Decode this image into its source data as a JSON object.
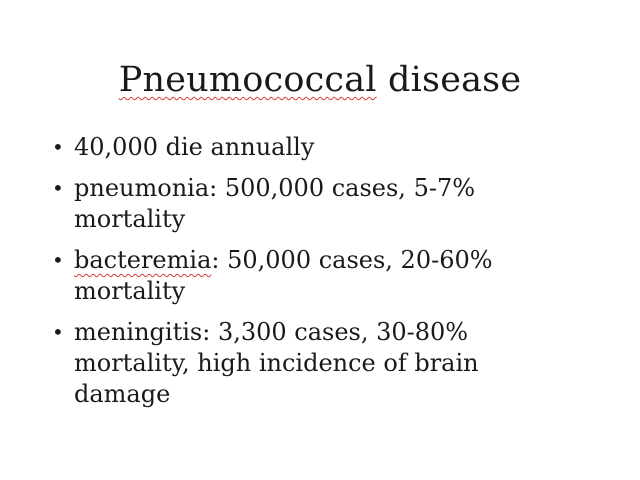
{
  "slide": {
    "title": {
      "word1": "Pneumococcal",
      "rest": " disease"
    },
    "bullet_glyph": "•",
    "bullets": [
      {
        "text": "40,000 die annually"
      },
      {
        "text": "pneumonia: 500,000 cases, 5-7% mortality"
      },
      {
        "lead": "bacteremia",
        "rest": ": 50,000 cases, 20-60% mortality"
      },
      {
        "text": "meningitis: 3,300 cases, 30-80% mortality, high incidence of brain damage"
      }
    ],
    "colors": {
      "text": "#1a1a1a",
      "spellcheck_underline": "#d23c3c",
      "background": "#ffffff"
    }
  }
}
